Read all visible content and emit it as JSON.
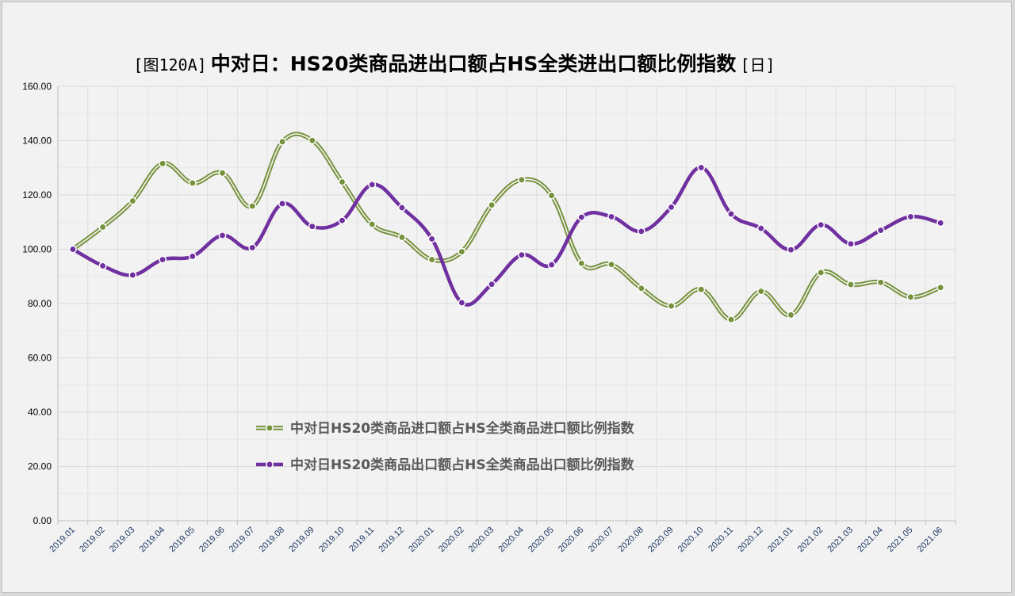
{
  "chart_data": {
    "type": "line",
    "title_parts": {
      "prefix": "[图120A]",
      "main": "中对日：HS20类商品进出口额占HS全类进出口额比例指数",
      "suffix": "[日]"
    },
    "xlabel": "",
    "ylabel": "",
    "ylim": [
      0,
      160
    ],
    "yticks": [
      "0.00",
      "20.00",
      "40.00",
      "60.00",
      "80.00",
      "100.00",
      "120.00",
      "140.00",
      "160.00"
    ],
    "grid": true,
    "legend_position": "lower-center",
    "categories": [
      "2019.01",
      "2019.02",
      "2019.03",
      "2019.04",
      "2019.05",
      "2019.06",
      "2019.07",
      "2019.08",
      "2019.09",
      "2019.10",
      "2019.11",
      "2019.12",
      "2020.01",
      "2020.02",
      "2020.03",
      "2020.04",
      "2020.05",
      "2020.06",
      "2020.07",
      "2020.08",
      "2020.09",
      "2020.10",
      "2020.11",
      "2020.12",
      "2021.01",
      "2021.02",
      "2021.03",
      "2021.04",
      "2021.05",
      "2021.06"
    ],
    "series": [
      {
        "name": "中对日HS20类商品进口额占HS全类商品进口额比例指数",
        "color": "#76923c",
        "values": [
          100,
          108.2,
          117.8,
          131.6,
          124.4,
          128.1,
          115.9,
          139.6,
          140.1,
          124.8,
          109.2,
          104.4,
          96.2,
          99.1,
          116.3,
          125.6,
          119.8,
          94.8,
          94.4,
          85.6,
          79.1,
          85.2,
          74.1,
          84.5,
          75.8,
          91.4,
          87.0,
          87.8,
          82.4,
          85.9
        ]
      },
      {
        "name": "中对日HS20类商品出口额占HS全类商品出口额比例指数",
        "color": "#7030a0",
        "values": [
          100,
          93.9,
          90.5,
          96.2,
          97.4,
          105.1,
          100.6,
          116.8,
          108.4,
          110.6,
          123.8,
          115.3,
          103.8,
          80.3,
          87.1,
          97.9,
          94.3,
          111.8,
          112.0,
          106.6,
          115.5,
          130.1,
          113.0,
          107.7,
          99.8,
          109.0,
          102.0,
          107.0,
          112.0,
          109.7
        ]
      }
    ]
  }
}
